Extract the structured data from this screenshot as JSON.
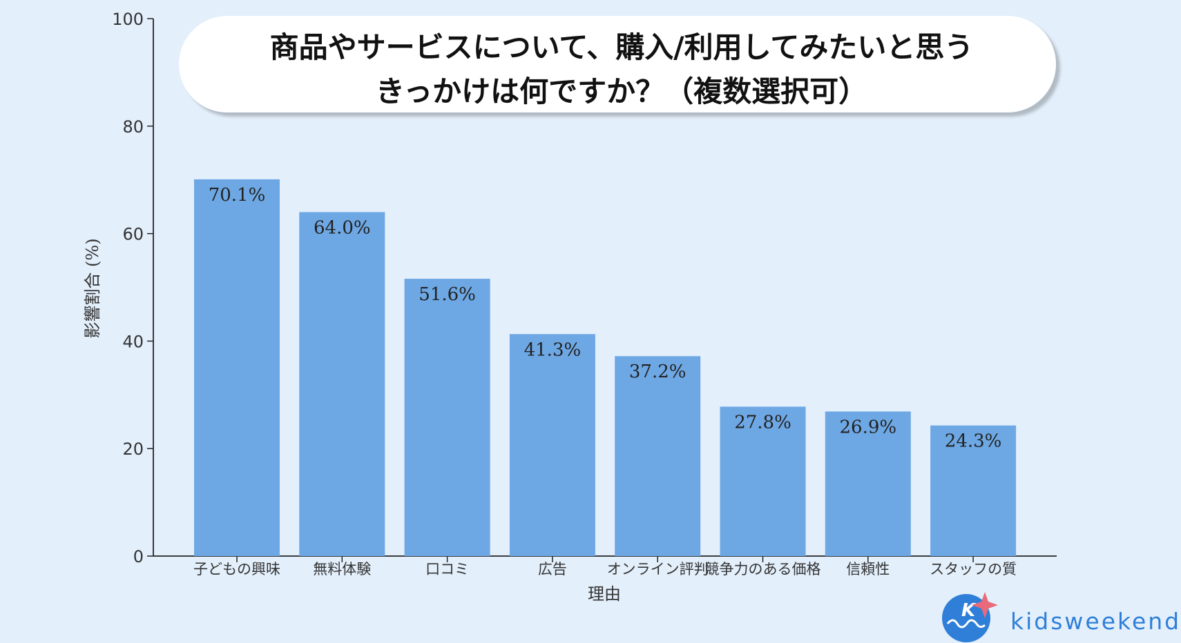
{
  "title_lines": [
    "商品やサービスについて、購入/利用してみたいと思う",
    "きっかけは何ですか？（複数選択可）"
  ],
  "brand": {
    "name": "kidsweekend",
    "logo_letter": "K",
    "primary_color": "#2f7fd8",
    "star_color": "#e96a7a"
  },
  "chart_data": {
    "type": "bar",
    "categories": [
      "子どもの興味",
      "無料体験",
      "口コミ",
      "広告",
      "オンライン評判",
      "競争力のある価格",
      "信頼性",
      "スタッフの質"
    ],
    "values": [
      70.1,
      64.0,
      51.6,
      41.3,
      37.2,
      27.8,
      26.9,
      24.3
    ],
    "value_labels": [
      "70.1%",
      "64.0%",
      "51.6%",
      "41.3%",
      "37.2%",
      "27.8%",
      "26.9%",
      "24.3%"
    ],
    "xlabel": "理由",
    "ylabel": "影響割合 (%)",
    "ylim": [
      0,
      100
    ],
    "yticks": [
      0,
      20,
      40,
      60,
      80,
      100
    ],
    "grid": false,
    "bar_color": "#6ea8e4"
  }
}
